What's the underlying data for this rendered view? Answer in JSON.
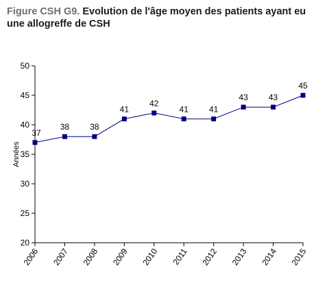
{
  "title": {
    "prefix": "Figure CSH G9.",
    "text": "Evolution de l'âge moyen des patients ayant eu une allogreffe de CSH"
  },
  "colors": {
    "series": "#000080",
    "axis": "#000000"
  },
  "chart_data": {
    "type": "line",
    "x": [
      "2006",
      "2007",
      "2008",
      "2009",
      "2010",
      "2011",
      "2012",
      "2013",
      "2014",
      "2015"
    ],
    "series": [
      {
        "values": [
          37,
          38,
          38,
          41,
          42,
          41,
          41,
          43,
          43,
          45
        ]
      }
    ],
    "data_labels": [
      "37",
      "38",
      "38",
      "41",
      "42",
      "41",
      "41",
      "43",
      "43",
      "45"
    ],
    "ylabel": "Années",
    "xlabel": "",
    "ylim": [
      20,
      50
    ],
    "yticks": [
      "20",
      "25",
      "30",
      "35",
      "40",
      "45",
      "50"
    ],
    "grid": false,
    "legend": "none",
    "marker": "square"
  }
}
